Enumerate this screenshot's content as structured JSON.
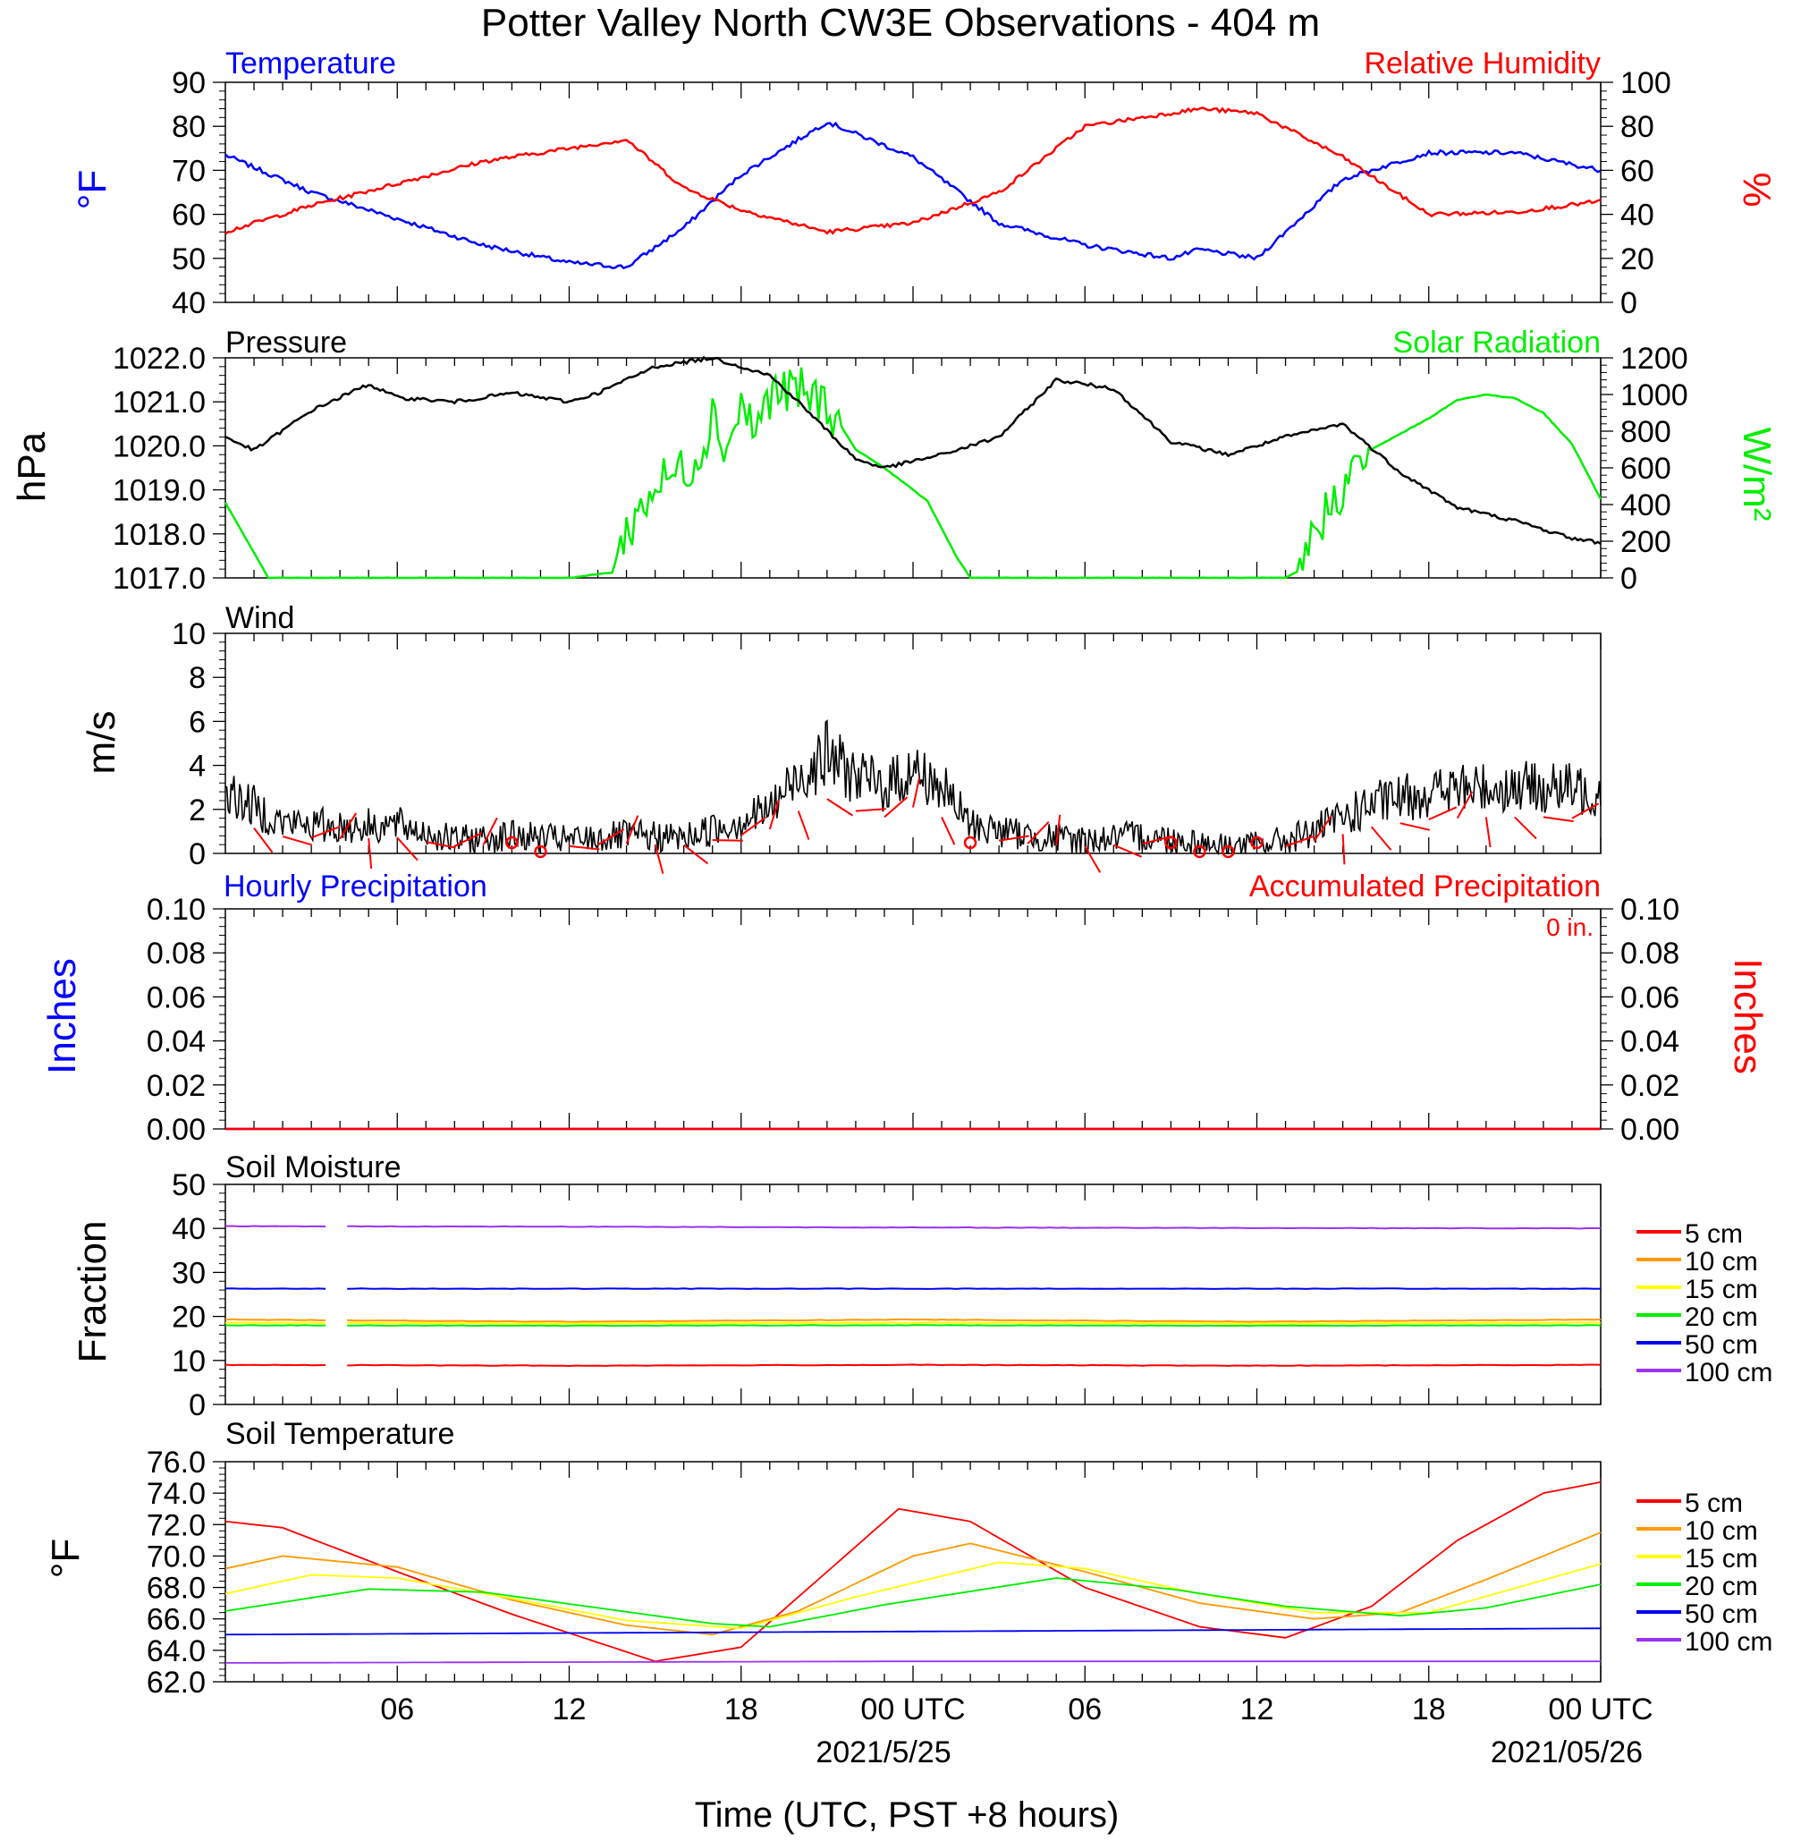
{
  "title": "Potter Valley North CW3E Observations - 404 m",
  "x_axis": {
    "label": "Time (UTC, PST +8 hours)",
    "tick_labels": [
      "06",
      "12",
      "18",
      "00 UTC",
      "06",
      "12",
      "18",
      "00 UTC"
    ],
    "date_labels": [
      "2021/5/25",
      "2021/05/26"
    ]
  },
  "colors": {
    "temperature": "#0000ff",
    "humidity": "#ff0000",
    "pressure": "#000000",
    "solar": "#00ee00",
    "wind": "#000000",
    "wind_barb": "#ff0000",
    "soil_5": "#ff0000",
    "soil_10": "#ff9900",
    "soil_15": "#ffff00",
    "soil_20": "#00ee00",
    "soil_50": "#0000ee",
    "soil_100": "#9933ee"
  },
  "chart_data": [
    {
      "type": "line",
      "panel": "temperature-humidity",
      "left_title": "Temperature",
      "right_title": "Relative Humidity",
      "ylabel_left": "°F",
      "ylabel_right": "%",
      "ylim_left": [
        40,
        90
      ],
      "ylim_right": [
        0,
        100
      ],
      "yticks_left": [
        "40",
        "50",
        "60",
        "70",
        "80",
        "90"
      ],
      "yticks_right": [
        "0",
        "20",
        "40",
        "60",
        "80",
        "100"
      ],
      "x_hours": [
        0,
        3,
        6,
        9,
        12,
        14,
        16,
        18,
        21,
        24,
        27,
        30,
        33,
        34,
        36,
        39,
        42,
        45,
        48
      ],
      "series": [
        {
          "name": "Temperature",
          "axis": "left",
          "values": [
            73.5,
            65,
            59,
            53,
            49,
            48,
            57,
            69,
            81,
            73,
            58,
            53,
            50,
            52,
            50,
            68,
            74,
            74,
            70
          ]
        },
        {
          "name": "Relative Humidity",
          "axis": "right",
          "values": [
            32,
            44,
            54,
            64,
            70,
            74,
            52,
            42,
            32,
            36,
            50,
            80,
            86,
            88,
            86,
            66,
            40,
            41,
            46
          ]
        }
      ]
    },
    {
      "type": "line",
      "panel": "pressure-solar",
      "left_title": "Pressure",
      "right_title": "Solar Radiation",
      "ylabel_left": "hPa",
      "ylabel_right": "W/m²",
      "ylim_left": [
        1017.0,
        1022.0
      ],
      "ylim_right": [
        0,
        1200
      ],
      "yticks_left": [
        "1017.0",
        "1018.0",
        "1019.0",
        "1020.0",
        "1021.0",
        "1022.0"
      ],
      "yticks_right": [
        "0",
        "200",
        "400",
        "600",
        "800",
        "1000",
        "1200"
      ],
      "series": [
        {
          "name": "Pressure",
          "axis": "left",
          "x_hours": [
            0,
            1,
            3,
            5,
            6,
            8,
            10,
            12,
            13,
            15,
            17,
            19,
            20,
            22,
            23,
            25,
            27,
            29,
            31,
            33,
            35,
            37,
            39,
            41,
            43,
            45,
            47,
            48
          ],
          "values": [
            1020.2,
            1019.9,
            1020.8,
            1021.4,
            1021.1,
            1021.0,
            1021.2,
            1021.0,
            1021.2,
            1021.8,
            1022.0,
            1021.6,
            1021.0,
            1019.7,
            1019.5,
            1019.8,
            1020.2,
            1021.5,
            1021.3,
            1020.1,
            1019.8,
            1020.2,
            1020.5,
            1019.4,
            1018.6,
            1018.3,
            1017.9,
            1017.8
          ]
        },
        {
          "name": "Solar Radiation",
          "axis": "right",
          "x_hours": [
            0,
            1.5,
            12,
            13.5,
            14,
            15,
            16,
            16.5,
            17,
            17.5,
            18,
            18.5,
            19,
            20,
            21,
            22,
            23,
            24.5,
            25.5,
            26,
            37,
            37.5,
            38,
            39,
            39.5,
            40,
            42,
            43,
            44,
            45,
            46,
            47,
            48
          ],
          "values": [
            410,
            0,
            0,
            30,
            250,
            500,
            600,
            650,
            900,
            700,
            950,
            800,
            1000,
            1020,
            950,
            700,
            600,
            420,
            120,
            0,
            0,
            40,
            250,
            500,
            600,
            700,
            870,
            970,
            1000,
            980,
            900,
            730,
            430
          ]
        }
      ]
    },
    {
      "type": "line",
      "panel": "wind",
      "left_title": "Wind",
      "ylabel_left": "m/s",
      "ylim_left": [
        0,
        10
      ],
      "yticks_left": [
        "0",
        "2",
        "4",
        "6",
        "8",
        "10"
      ],
      "x_hours": [
        0,
        2,
        4,
        6,
        8,
        10,
        12,
        14,
        16,
        18,
        19,
        20,
        21,
        22,
        23,
        24,
        25,
        26,
        28,
        30,
        32,
        34,
        35,
        36,
        37,
        38,
        40,
        42,
        44,
        46,
        48
      ],
      "series": [
        {
          "name": "Wind",
          "axis": "left",
          "values": [
            2.8,
            1.4,
            1.2,
            1.3,
            0.6,
            0.8,
            0.6,
            0.8,
            0.7,
            1.5,
            2.0,
            3.5,
            4.5,
            3.5,
            3.0,
            3.8,
            3.0,
            1.3,
            0.8,
            0.6,
            0.8,
            0.5,
            0.3,
            0.4,
            0.6,
            1.0,
            2.2,
            2.8,
            3.0,
            3.0,
            2.8
          ]
        }
      ]
    },
    {
      "type": "line",
      "panel": "precipitation",
      "left_title": "Hourly Precipitation",
      "right_title": "Accumulated Precipitation",
      "annotation": "0 in.",
      "ylabel_left": "Inches",
      "ylabel_right": "Inches",
      "ylim_left": [
        0,
        0.1
      ],
      "ylim_right": [
        0,
        0.1
      ],
      "yticks_left": [
        "0.00",
        "0.02",
        "0.04",
        "0.06",
        "0.08",
        "0.10"
      ],
      "yticks_right": [
        "0.00",
        "0.02",
        "0.04",
        "0.06",
        "0.08",
        "0.10"
      ],
      "x_hours": [
        0,
        48
      ],
      "series": [
        {
          "name": "Hourly Precipitation",
          "axis": "left",
          "values": [
            0,
            0
          ]
        },
        {
          "name": "Accumulated Precipitation",
          "axis": "right",
          "values": [
            0,
            0
          ]
        }
      ]
    },
    {
      "type": "line",
      "panel": "soil-moisture",
      "left_title": "Soil Moisture",
      "ylabel_left": "Fraction",
      "ylim_left": [
        0,
        50
      ],
      "yticks_left": [
        "0",
        "10",
        "20",
        "30",
        "40",
        "50"
      ],
      "x_hours": [
        0,
        12,
        24,
        36,
        48
      ],
      "series": [
        {
          "name": "5 cm",
          "values": [
            9.0,
            8.8,
            9.0,
            8.8,
            9.0
          ]
        },
        {
          "name": "10 cm",
          "values": [
            19.3,
            18.8,
            19.3,
            18.8,
            19.3
          ]
        },
        {
          "name": "15 cm",
          "values": [
            18.6,
            18.4,
            18.6,
            18.4,
            18.6
          ]
        },
        {
          "name": "20 cm",
          "values": [
            18.0,
            17.9,
            18.0,
            17.9,
            18.0
          ]
        },
        {
          "name": "50 cm",
          "values": [
            26.3,
            26.3,
            26.3,
            26.3,
            26.3
          ]
        },
        {
          "name": "100 cm",
          "values": [
            40.5,
            40.4,
            40.2,
            40.1,
            40.0
          ]
        }
      ]
    },
    {
      "type": "line",
      "panel": "soil-temperature",
      "left_title": "Soil Temperature",
      "ylabel_left": "°F",
      "ylim_left": [
        62.0,
        76.0
      ],
      "yticks_left": [
        "62.0",
        "64.0",
        "66.0",
        "68.0",
        "70.0",
        "72.0",
        "74.0",
        "76.0"
      ],
      "series": [
        {
          "name": "5 cm",
          "x_hours": [
            0,
            2,
            6,
            10,
            13,
            15,
            18,
            21,
            23.5,
            26,
            30,
            34,
            37,
            40,
            43,
            46,
            48
          ],
          "values": [
            72.2,
            71.8,
            69.0,
            66.3,
            64.5,
            63.3,
            64.2,
            69.0,
            73.0,
            72.2,
            68.0,
            65.5,
            64.8,
            66.8,
            71.0,
            74.0,
            74.7
          ]
        },
        {
          "name": "10 cm",
          "x_hours": [
            0,
            2,
            6,
            10,
            14,
            17,
            20,
            24,
            26,
            30,
            34,
            38,
            41,
            44,
            48
          ],
          "values": [
            69.2,
            70.0,
            69.3,
            67.2,
            65.6,
            65.0,
            66.5,
            70.0,
            70.8,
            69.0,
            67.0,
            66.0,
            66.4,
            68.5,
            71.5
          ]
        },
        {
          "name": "15 cm",
          "x_hours": [
            0,
            3,
            6,
            10,
            14,
            18,
            22,
            27,
            30,
            34,
            38,
            42,
            48
          ],
          "values": [
            67.6,
            68.8,
            68.6,
            67.3,
            65.9,
            65.4,
            67.4,
            69.6,
            69.2,
            67.6,
            66.4,
            66.4,
            69.5
          ]
        },
        {
          "name": "20 cm",
          "x_hours": [
            0,
            5,
            9,
            13,
            17,
            19,
            23,
            29,
            33,
            37,
            41,
            44,
            48
          ],
          "values": [
            66.5,
            67.9,
            67.7,
            66.7,
            65.7,
            65.5,
            66.9,
            68.6,
            67.9,
            66.8,
            66.2,
            66.7,
            68.2
          ]
        },
        {
          "name": "50 cm",
          "x_hours": [
            0,
            12,
            24,
            36,
            48
          ],
          "values": [
            65.0,
            65.1,
            65.2,
            65.3,
            65.4
          ]
        },
        {
          "name": "100 cm",
          "x_hours": [
            0,
            12,
            24,
            36,
            48
          ],
          "values": [
            63.2,
            63.25,
            63.3,
            63.3,
            63.3
          ]
        }
      ]
    }
  ],
  "soil_legend": [
    "5 cm",
    "10 cm",
    "15 cm",
    "20 cm",
    "50 cm",
    "100 cm"
  ]
}
